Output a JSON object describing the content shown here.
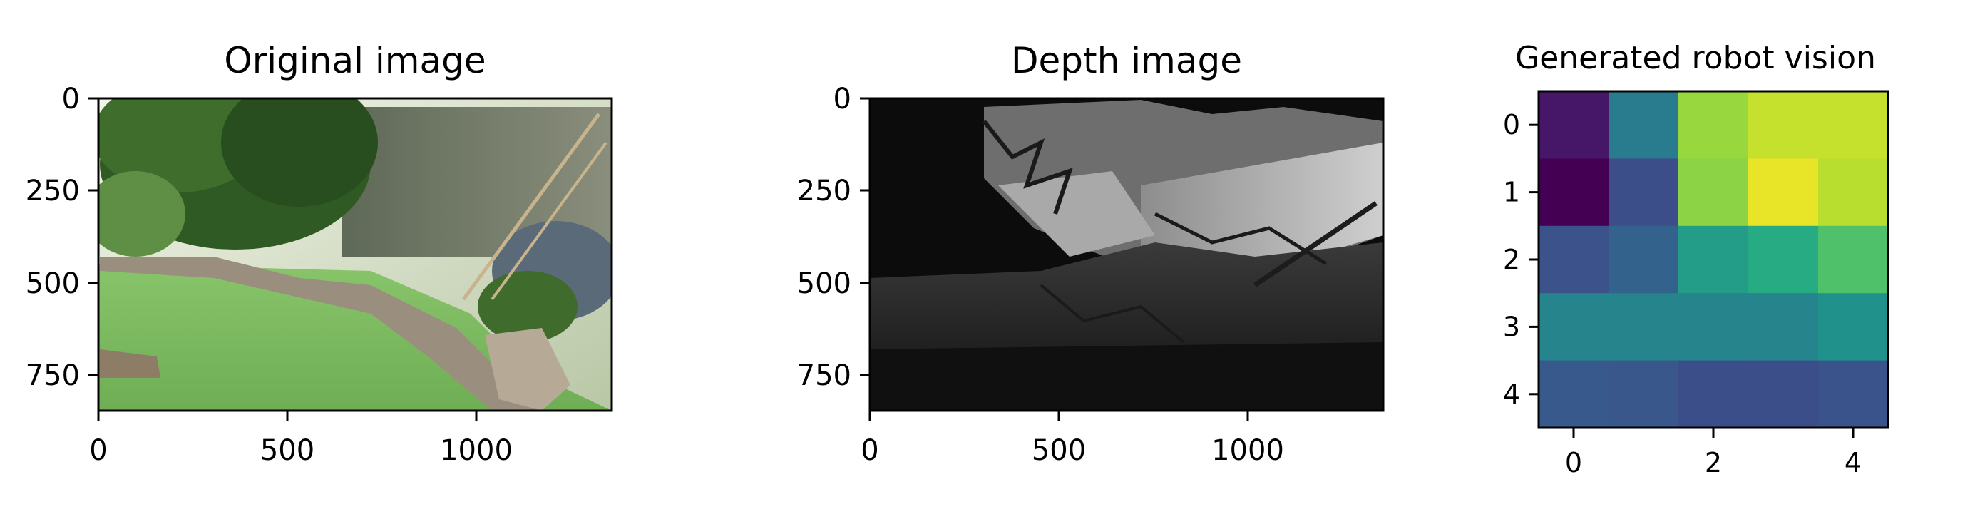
{
  "chart_data": [
    {
      "type": "image",
      "title": "Original image",
      "xlim": [
        0,
        1400
      ],
      "ylim": [
        850,
        0
      ],
      "xticks": [
        0,
        500,
        1000
      ],
      "yticks": [
        0,
        250,
        500,
        750
      ]
    },
    {
      "type": "image",
      "title": "Depth image",
      "xlim": [
        0,
        1400
      ],
      "ylim": [
        850,
        0
      ],
      "xticks": [
        0,
        500,
        1000
      ],
      "yticks": [
        0,
        250,
        500,
        750
      ]
    },
    {
      "type": "heatmap",
      "title": "Generated robot vision",
      "colormap": "viridis",
      "xlim": [
        -0.5,
        4.5
      ],
      "ylim": [
        4.5,
        -0.5
      ],
      "xticks": [
        0,
        2,
        4
      ],
      "yticks": [
        0,
        1,
        2,
        3,
        4
      ],
      "values": [
        [
          0.08,
          0.42,
          0.85,
          0.92,
          0.92
        ],
        [
          0.0,
          0.24,
          0.83,
          0.97,
          0.9
        ],
        [
          0.25,
          0.32,
          0.55,
          0.62,
          0.72
        ],
        [
          0.45,
          0.45,
          0.45,
          0.45,
          0.5
        ],
        [
          0.28,
          0.27,
          0.24,
          0.24,
          0.26
        ]
      ]
    }
  ]
}
